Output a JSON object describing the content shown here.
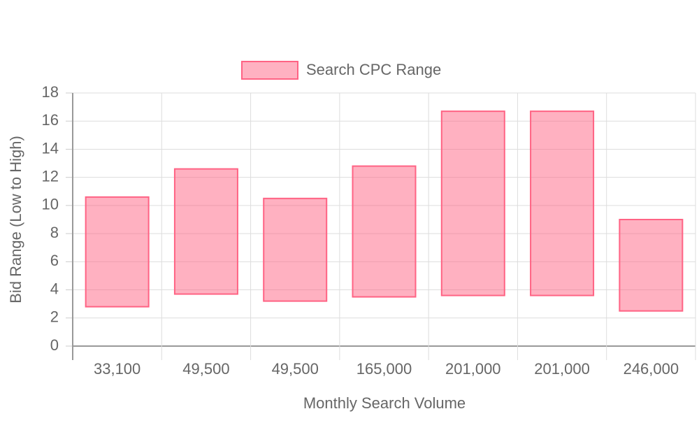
{
  "chart_data": {
    "type": "floating-bar",
    "x_label": "Monthly Search Volume",
    "y_label": "Bid Range (Low to High)",
    "categories": [
      "33,100",
      "49,500",
      "49,500",
      "165,000",
      "201,000",
      "201,000",
      "246,000"
    ],
    "series": [
      {
        "name": "Search CPC Range",
        "color": "#ff6384",
        "low": [
          2.8,
          3.7,
          3.2,
          3.5,
          3.6,
          3.6,
          2.5
        ],
        "high": [
          10.6,
          12.6,
          10.5,
          12.8,
          16.7,
          16.7,
          9.0
        ]
      }
    ],
    "ylim": [
      0,
      18
    ],
    "yticks": [
      0,
      2,
      4,
      6,
      8,
      10,
      12,
      14,
      16,
      18
    ],
    "grid": true,
    "legend": "top"
  }
}
